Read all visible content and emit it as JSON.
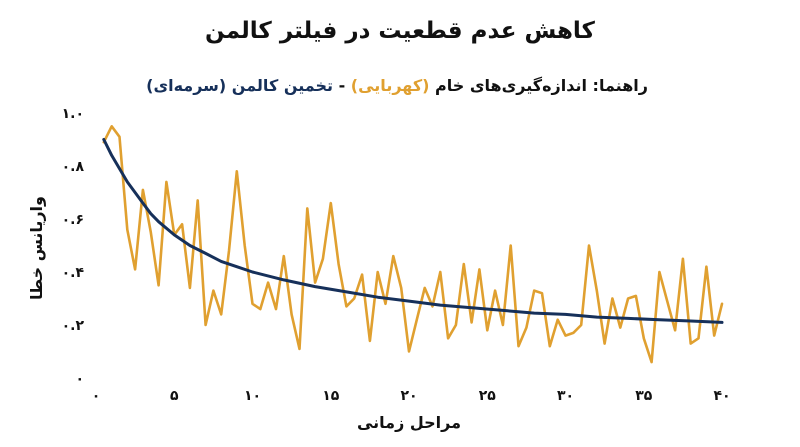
{
  "chart_data": {
    "type": "line",
    "title": "کاهش عدم قطعیت در فیلتر کالمن",
    "legend": {
      "prefix": "راهنما: ",
      "raw_label": "اندازه‌گیری‌های خام",
      "raw_color_name": "(کهربایی)",
      "separator": " - ",
      "kalman_label": "تخمین کالمن",
      "kalman_color_name": "(سرمه‌ای)",
      "placement": "top"
    },
    "xlabel": "مراحل زمانی",
    "ylabel": "واریانس خطا",
    "xlim": [
      0,
      40
    ],
    "ylim": [
      0,
      1.0
    ],
    "x_ticks": [
      0,
      5,
      10,
      15,
      20,
      25,
      30,
      35,
      40
    ],
    "x_tick_labels": [
      "۰",
      "۵",
      "۱۰",
      "۱۵",
      "۲۰",
      "۲۵",
      "۳۰",
      "۳۵",
      "۴۰"
    ],
    "y_ticks": [
      0,
      0.2,
      0.4,
      0.6,
      0.8,
      1.0
    ],
    "y_tick_labels": [
      "۰",
      "۰.۲",
      "۰.۴",
      "۰.۶",
      "۰.۸",
      "۱.۰"
    ],
    "grid": false,
    "colors": {
      "raw": "#e0a030",
      "kalman": "#16305a"
    },
    "series": [
      {
        "name": "اندازه‌گیری‌های خام",
        "color": "#e0a030",
        "x": [
          0.5,
          1.0,
          1.5,
          2.0,
          2.5,
          3.0,
          3.5,
          4.0,
          4.5,
          5.0,
          5.5,
          6.0,
          6.5,
          7.0,
          7.5,
          8.0,
          8.5,
          9.0,
          9.5,
          10.0,
          10.5,
          11.0,
          11.5,
          12.0,
          12.5,
          13.0,
          13.5,
          14.0,
          14.5,
          15.0,
          15.5,
          16.0,
          16.5,
          17.0,
          17.5,
          18.0,
          18.5,
          19.0,
          19.5,
          20.0,
          20.5,
          21.0,
          21.5,
          22.0,
          22.5,
          23.0,
          23.5,
          24.0,
          24.5,
          25.0,
          25.5,
          26.0,
          26.5,
          27.0,
          27.5,
          28.0,
          28.5,
          29.0,
          29.5,
          30.0,
          30.5,
          31.0,
          31.5,
          32.0,
          32.5,
          33.0,
          33.5,
          34.0,
          34.5,
          35.0,
          35.5,
          36.0,
          36.5,
          37.0,
          37.5,
          38.0,
          38.5,
          39.0,
          39.5,
          40.0
        ],
        "values": [
          0.89,
          0.95,
          0.91,
          0.56,
          0.41,
          0.71,
          0.55,
          0.35,
          0.74,
          0.54,
          0.58,
          0.34,
          0.67,
          0.2,
          0.33,
          0.24,
          0.48,
          0.78,
          0.5,
          0.28,
          0.26,
          0.36,
          0.26,
          0.46,
          0.24,
          0.11,
          0.64,
          0.36,
          0.45,
          0.66,
          0.43,
          0.27,
          0.3,
          0.39,
          0.14,
          0.4,
          0.28,
          0.46,
          0.34,
          0.1,
          0.22,
          0.34,
          0.27,
          0.4,
          0.15,
          0.2,
          0.43,
          0.21,
          0.41,
          0.18,
          0.33,
          0.2,
          0.5,
          0.12,
          0.19,
          0.33,
          0.32,
          0.12,
          0.22,
          0.16,
          0.17,
          0.2,
          0.5,
          0.33,
          0.13,
          0.3,
          0.19,
          0.3,
          0.31,
          0.15,
          0.06,
          0.4,
          0.29,
          0.18,
          0.45,
          0.13,
          0.15,
          0.42,
          0.16,
          0.28
        ]
      },
      {
        "name": "تخمین کالمن",
        "color": "#16305a",
        "x": [
          0.5,
          1,
          1.5,
          2,
          2.5,
          3,
          3.5,
          4,
          5,
          6,
          7,
          8,
          9,
          10,
          12,
          14,
          16,
          18,
          20,
          22,
          24,
          26,
          28,
          30,
          32,
          34,
          36,
          38,
          40
        ],
        "values": [
          0.9,
          0.84,
          0.79,
          0.74,
          0.7,
          0.66,
          0.62,
          0.59,
          0.54,
          0.5,
          0.47,
          0.44,
          0.42,
          0.4,
          0.37,
          0.345,
          0.325,
          0.305,
          0.29,
          0.275,
          0.265,
          0.255,
          0.245,
          0.24,
          0.23,
          0.225,
          0.22,
          0.215,
          0.21
        ]
      }
    ]
  }
}
